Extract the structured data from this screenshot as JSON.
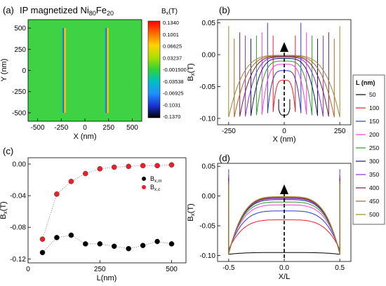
{
  "panels": {
    "a": {
      "label": "(a)",
      "title_main": "IP magnetized Ni",
      "title_sub1": "80",
      "title_mid": "Fe",
      "title_sub2": "20",
      "colorbar_label": "B",
      "colorbar_label_sub": "x",
      "colorbar_label_unit": "(T)",
      "colorbar_ticks": [
        "0.1340",
        "0.1001",
        "0.06625",
        "0.03237",
        "-0.001500",
        "-0.03538",
        "-0.06925",
        "-0.1031",
        "-0.1370"
      ]
    },
    "b": {
      "label": "(b)"
    },
    "c": {
      "label": "(c)"
    },
    "d": {
      "label": "(d)"
    },
    "legend_bd": {
      "title": "L (nm)",
      "entries": [
        {
          "label": "50",
          "color": "#000000"
        },
        {
          "label": "100",
          "color": "#e8202a"
        },
        {
          "label": "150",
          "color": "#2b3bd0"
        },
        {
          "label": "200",
          "color": "#ff3fdc"
        },
        {
          "label": "250",
          "color": "#2e9c2e"
        },
        {
          "label": "300",
          "color": "#1a1a7a"
        },
        {
          "label": "350",
          "color": "#8a2be2"
        },
        {
          "label": "400",
          "color": "#7a1f3d"
        },
        {
          "label": "450",
          "color": "#b5651d"
        },
        {
          "label": "500",
          "color": "#9a8a30"
        }
      ]
    },
    "legend_c": {
      "entries": [
        {
          "label": "B",
          "sub": "x,m",
          "color": "#000000"
        },
        {
          "label": "B",
          "sub": "x,c",
          "color": "#e8202a"
        }
      ]
    }
  },
  "chart_data": [
    {
      "panel": "a",
      "type": "heatmap",
      "title": "IP magnetized Ni80Fe20",
      "xlabel": "X (nm)",
      "ylabel": "Y (nm)",
      "xlim": [
        -600,
        600
      ],
      "ylim": [
        -600,
        600
      ],
      "xticks": [
        -500,
        -250,
        0,
        250,
        500
      ],
      "yticks": [
        -500,
        -250,
        0,
        250,
        500
      ],
      "background_value": 0.02,
      "stripes": [
        {
          "x_center": -250,
          "y_range": [
            -500,
            500
          ]
        },
        {
          "x_center": 250,
          "y_range": [
            -500,
            500
          ]
        }
      ],
      "colorbar": {
        "min": -0.137,
        "max": 0.134
      }
    },
    {
      "panel": "b",
      "type": "line",
      "xlabel": "X (nm)",
      "ylabel": "Bx(T)",
      "xlim": [
        -300,
        300
      ],
      "ylim": [
        -0.11,
        0.055
      ],
      "xticks": [
        -250,
        0,
        250
      ],
      "yticks": [
        -0.1,
        -0.05,
        0.0,
        0.05
      ],
      "series": [
        {
          "name": "50",
          "half_width": 25,
          "center": -0.095,
          "edge": -0.085,
          "spike": -0.07
        },
        {
          "name": "100",
          "half_width": 50,
          "center": -0.04,
          "edge": -0.09,
          "spike": 0.03
        },
        {
          "name": "150",
          "half_width": 75,
          "center": -0.025,
          "edge": -0.092,
          "spike": 0.05
        },
        {
          "name": "200",
          "half_width": 100,
          "center": -0.015,
          "edge": -0.094,
          "spike": 0.035
        },
        {
          "name": "250",
          "half_width": 125,
          "center": -0.01,
          "edge": -0.095,
          "spike": 0.03
        },
        {
          "name": "300",
          "half_width": 150,
          "center": -0.006,
          "edge": -0.096,
          "spike": 0.025
        },
        {
          "name": "350",
          "half_width": 175,
          "center": -0.004,
          "edge": -0.097,
          "spike": 0.03
        },
        {
          "name": "400",
          "half_width": 200,
          "center": -0.003,
          "edge": -0.097,
          "spike": 0.035
        },
        {
          "name": "450",
          "half_width": 225,
          "center": -0.002,
          "edge": -0.098,
          "spike": 0.025
        },
        {
          "name": "500",
          "half_width": 250,
          "center": -0.001,
          "edge": -0.098,
          "spike": 0.045
        }
      ]
    },
    {
      "panel": "c",
      "type": "scatter",
      "xlabel": "L(nm)",
      "ylabel": "Bx(T)",
      "xlim": [
        0,
        550
      ],
      "ylim": [
        -0.125,
        0.008
      ],
      "xticks": [
        0,
        250,
        500
      ],
      "yticks": [
        -0.12,
        -0.08,
        -0.04,
        0.0
      ],
      "x": [
        50,
        100,
        150,
        200,
        250,
        300,
        350,
        400,
        450,
        500
      ],
      "series": [
        {
          "name": "Bx,m",
          "values": [
            -0.112,
            -0.093,
            -0.09,
            -0.101,
            -0.101,
            -0.104,
            -0.107,
            -0.103,
            -0.098,
            -0.101
          ]
        },
        {
          "name": "Bx,c",
          "values": [
            -0.095,
            -0.038,
            -0.022,
            -0.012,
            -0.006,
            -0.004,
            -0.003,
            -0.002,
            -0.002,
            -0.001
          ]
        }
      ]
    },
    {
      "panel": "d",
      "type": "line",
      "xlabel": "X/L",
      "ylabel": "Bx(T)",
      "xlim": [
        -0.6,
        0.6
      ],
      "ylim": [
        -0.11,
        0.055
      ],
      "xticks": [
        -0.5,
        0.0,
        0.5
      ],
      "yticks": [
        -0.1,
        -0.05,
        0.0,
        0.05
      ],
      "series": [
        {
          "name": "50",
          "center": -0.095,
          "edge": -0.098,
          "spike": -0.06
        },
        {
          "name": "100",
          "center": -0.04,
          "edge": -0.09,
          "spike": 0.03
        },
        {
          "name": "150",
          "center": -0.025,
          "edge": -0.092,
          "spike": 0.045
        },
        {
          "name": "200",
          "center": -0.015,
          "edge": -0.094,
          "spike": 0.04
        },
        {
          "name": "250",
          "center": -0.01,
          "edge": -0.095,
          "spike": 0.035
        },
        {
          "name": "300",
          "center": -0.006,
          "edge": -0.096,
          "spike": 0.03
        },
        {
          "name": "350",
          "center": -0.004,
          "edge": -0.097,
          "spike": 0.035
        },
        {
          "name": "400",
          "center": -0.003,
          "edge": -0.097,
          "spike": 0.03
        },
        {
          "name": "450",
          "center": -0.002,
          "edge": -0.098,
          "spike": 0.025
        },
        {
          "name": "500",
          "center": -0.001,
          "edge": -0.098,
          "spike": 0.02
        }
      ]
    }
  ]
}
